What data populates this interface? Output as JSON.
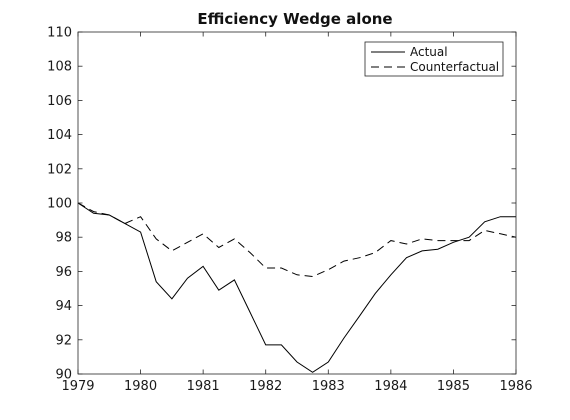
{
  "chart_data": {
    "type": "line",
    "title": "Efficiency Wedge alone",
    "xlabel": "",
    "ylabel": "",
    "xlim": [
      1979,
      1986
    ],
    "ylim": [
      90,
      110
    ],
    "xticks": [
      1979,
      1980,
      1981,
      1982,
      1983,
      1984,
      1985,
      1986
    ],
    "yticks": [
      90,
      92,
      94,
      96,
      98,
      100,
      102,
      104,
      106,
      108,
      110
    ],
    "grid": false,
    "legend_position": "top-right",
    "series": [
      {
        "name": "Actual",
        "style": "solid",
        "color": "#000000",
        "x": [
          1979.0,
          1979.25,
          1979.5,
          1979.75,
          1980.0,
          1980.25,
          1980.5,
          1980.75,
          1981.0,
          1981.25,
          1981.5,
          1981.75,
          1982.0,
          1982.25,
          1982.5,
          1982.75,
          1983.0,
          1983.25,
          1983.5,
          1983.75,
          1984.0,
          1984.25,
          1984.5,
          1984.75,
          1985.0,
          1985.25,
          1985.5,
          1985.75,
          1986.0
        ],
        "y": [
          100.0,
          99.4,
          99.3,
          98.8,
          98.3,
          95.4,
          94.4,
          95.6,
          96.3,
          94.9,
          95.5,
          93.6,
          91.7,
          91.7,
          90.7,
          90.1,
          90.7,
          92.1,
          93.4,
          94.7,
          95.8,
          96.8,
          97.2,
          97.3,
          97.7,
          98.0,
          98.9,
          99.2,
          99.2
        ]
      },
      {
        "name": "Counterfactual",
        "style": "dashed",
        "color": "#000000",
        "x": [
          1979.0,
          1979.25,
          1979.5,
          1979.75,
          1980.0,
          1980.25,
          1980.5,
          1980.75,
          1981.0,
          1981.25,
          1981.5,
          1981.75,
          1982.0,
          1982.25,
          1982.5,
          1982.75,
          1983.0,
          1983.25,
          1983.5,
          1983.75,
          1984.0,
          1984.25,
          1984.5,
          1984.75,
          1985.0,
          1985.25,
          1985.5,
          1985.75,
          1986.0
        ],
        "y": [
          100.0,
          99.5,
          99.3,
          98.8,
          99.2,
          97.9,
          97.2,
          97.7,
          98.2,
          97.4,
          97.9,
          97.1,
          96.2,
          96.2,
          95.8,
          95.7,
          96.1,
          96.6,
          96.8,
          97.1,
          97.8,
          97.6,
          97.9,
          97.8,
          97.8,
          97.8,
          98.4,
          98.2,
          98.0
        ]
      }
    ]
  }
}
